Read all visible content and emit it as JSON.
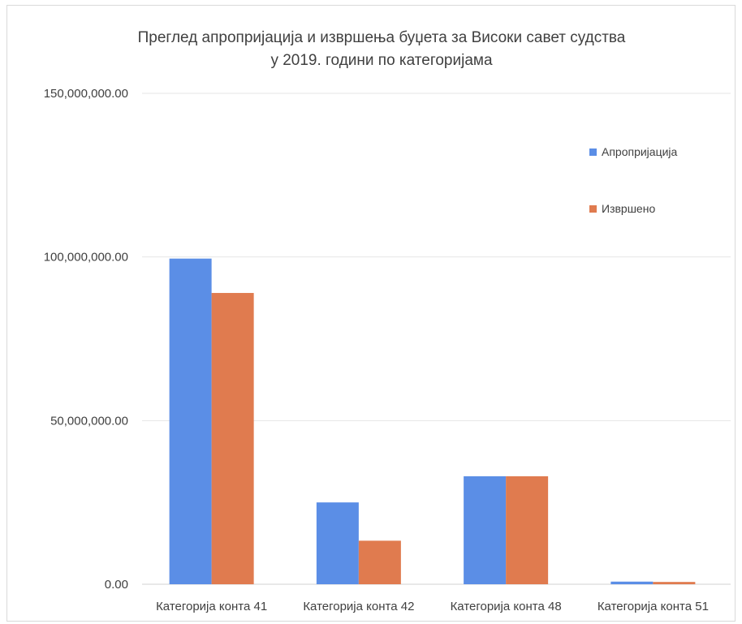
{
  "chart_data": {
    "type": "bar",
    "title_lines": [
      "Преглед апропријација и извршења буџета за Високи савет судства",
      "у 2019. години по категоријама"
    ],
    "categories": [
      "Категорија конта 41",
      "Категорија конта 42",
      "Категорија конта 48",
      "Категорија конта 51"
    ],
    "series": [
      {
        "name": "Апропријација",
        "color": "#5b8ee6",
        "values": [
          99500000,
          25000000,
          33000000,
          800000
        ]
      },
      {
        "name": "Извршено",
        "color": "#e07b4f",
        "values": [
          89000000,
          13300000,
          33000000,
          700000
        ]
      }
    ],
    "ylim": [
      0,
      150000000
    ],
    "yticks": [
      0,
      50000000,
      100000000,
      150000000
    ],
    "ytick_labels": [
      "0.00",
      "50,000,000.00",
      "100,000,000.00",
      "150,000,000.00"
    ],
    "grid": true,
    "legend_position": "right"
  }
}
